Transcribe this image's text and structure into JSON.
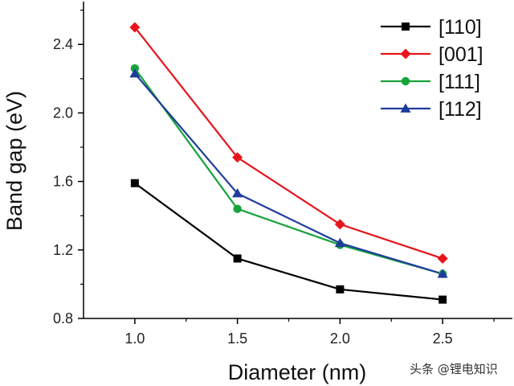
{
  "chart_data": {
    "type": "line",
    "x": [
      1.0,
      1.5,
      2.0,
      2.5
    ],
    "series": [
      {
        "name": "[110]",
        "values": [
          1.59,
          1.15,
          0.97,
          0.91
        ],
        "color": "#000000",
        "marker": "square"
      },
      {
        "name": "[001]",
        "values": [
          2.5,
          1.74,
          1.35,
          1.15
        ],
        "color": "#e8141b",
        "marker": "diamond"
      },
      {
        "name": "[111]",
        "values": [
          2.26,
          1.44,
          1.23,
          1.06
        ],
        "color": "#17a33c",
        "marker": "circle"
      },
      {
        "name": "[112]",
        "values": [
          2.23,
          1.53,
          1.24,
          1.06
        ],
        "color": "#1f3c9c",
        "marker": "triangle"
      }
    ],
    "xlabel": "Diameter (nm)",
    "ylabel": "Band gap (eV)",
    "xlim": [
      0.75,
      2.84
    ],
    "ylim": [
      0.8,
      2.65
    ],
    "xticks": [
      "1.0",
      "1.5",
      "2.0",
      "2.5"
    ],
    "yticks": [
      "0.8",
      "1.2",
      "1.6",
      "2.0",
      "2.4"
    ],
    "grid": false,
    "legend_position": "top-right"
  },
  "watermark": "头条 @锂电知识"
}
